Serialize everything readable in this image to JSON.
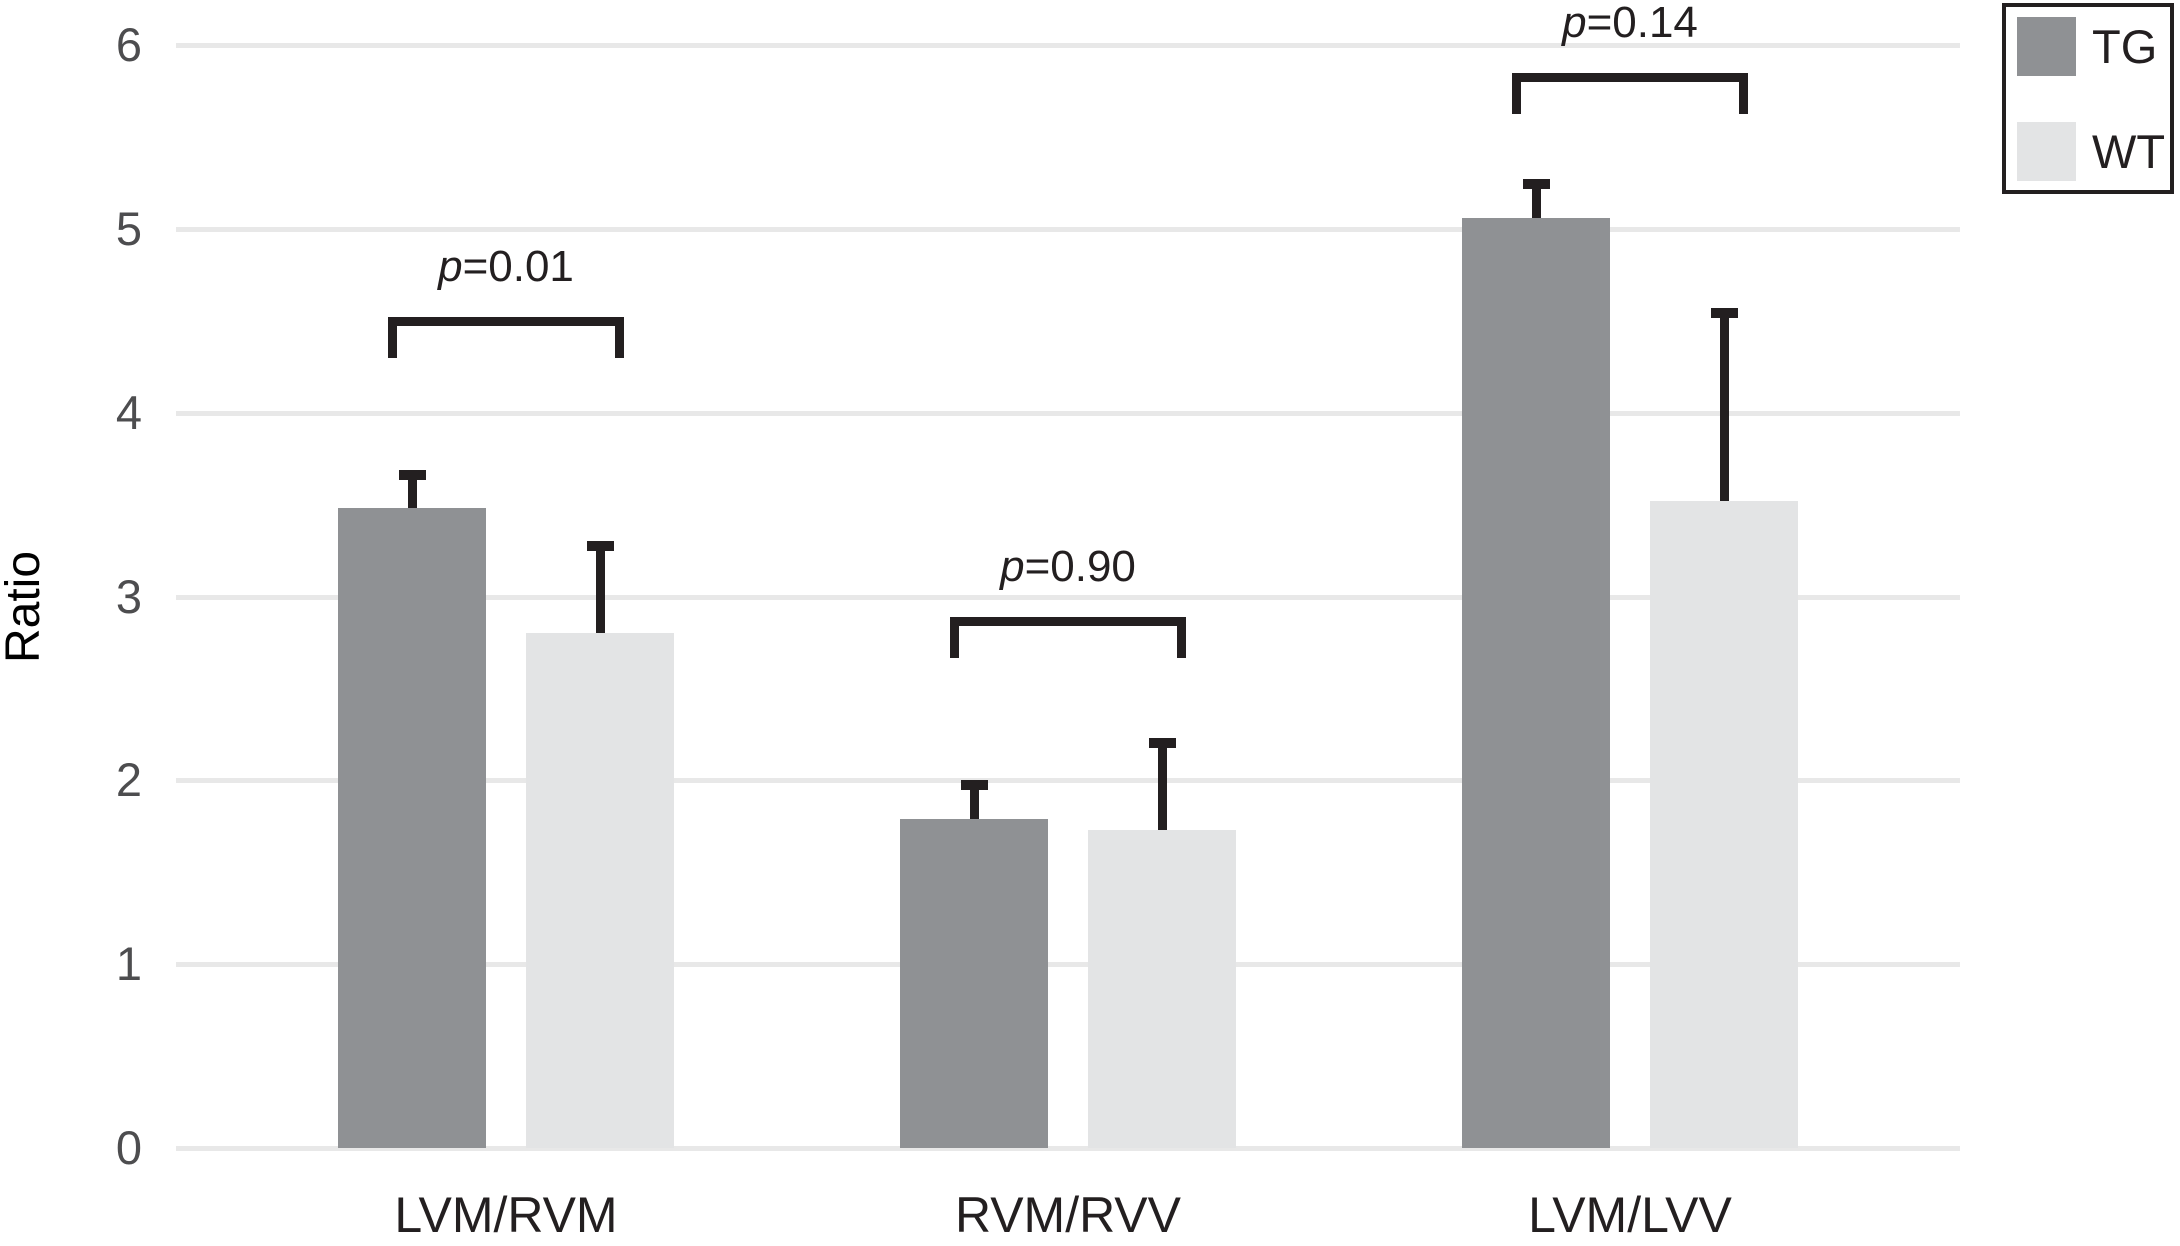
{
  "figure": {
    "background": "#ffffff"
  },
  "chart_data": {
    "type": "bar",
    "title": "",
    "ylabel": "Ratio",
    "xlabel": "",
    "categories": [
      "LVM/RVM",
      "RVM/RVV",
      "LVM/LVV"
    ],
    "series": [
      {
        "name": "TG",
        "color": "#8f9194",
        "values": [
          3.48,
          1.79,
          5.06
        ],
        "errors_plus": [
          0.21,
          0.21,
          0.21
        ]
      },
      {
        "name": "WT",
        "color": "#e3e4e5",
        "values": [
          2.8,
          1.73,
          3.52
        ],
        "errors_plus": [
          0.5,
          0.5,
          1.05
        ]
      }
    ],
    "ylim": [
      0,
      6
    ],
    "yticks": [
      "0",
      "1",
      "2",
      "3",
      "4",
      "5",
      "6"
    ],
    "grid": true,
    "legend_position": "top-right-outside",
    "annotations": [
      {
        "label": "p=0.01",
        "category": "LVM/RVM",
        "bracket_top_value": 4.52
      },
      {
        "label": "p=0.90",
        "category": "RVM/RVV",
        "bracket_top_value": 2.89
      },
      {
        "label": "p=0.14",
        "category": "LVM/LVV",
        "bracket_top_value": 5.85
      }
    ],
    "colors": {
      "grid": "#e8e8e8",
      "tick_text": "#4d4d4f",
      "label_text": "#231f20",
      "error_bar": "#231f20",
      "legend_border": "#231f20"
    }
  }
}
